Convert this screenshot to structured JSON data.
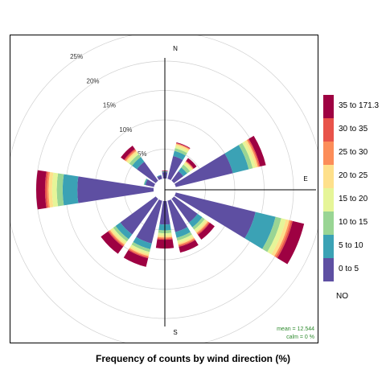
{
  "chart_data": {
    "type": "windrose",
    "title": "Frequency of counts by wind direction (%)",
    "directions": [
      "N",
      "NNE",
      "NE",
      "ENE",
      "E",
      "ESE",
      "SE",
      "SSE",
      "S",
      "SSW",
      "SW",
      "WSW",
      "W",
      "WNW",
      "NW",
      "NNW"
    ],
    "compass_labels": [
      "N",
      "E",
      "S"
    ],
    "radial_ticks": [
      5,
      10,
      15,
      20,
      25
    ],
    "radial_tick_labels": [
      "5%",
      "10%",
      "15%",
      "20%",
      "25%"
    ],
    "rmax_percent": 25,
    "legend_title": "NO",
    "bins": [
      {
        "label": "0 to 5",
        "color": "#5e4fa2"
      },
      {
        "label": "5 to 10",
        "color": "#3ba2b5"
      },
      {
        "label": "10 to 15",
        "color": "#99d594"
      },
      {
        "label": "15 to 20",
        "color": "#e6f598"
      },
      {
        "label": "20 to 25",
        "color": "#fee08b"
      },
      {
        "label": "25 to 30",
        "color": "#fc8d59"
      },
      {
        "label": "30 to 35",
        "color": "#e8534a"
      },
      {
        "label": "35 to 171.3",
        "color": "#9e0142"
      }
    ],
    "series": [
      {
        "direction": "N",
        "values": [
          1.1,
          0.1,
          0.05,
          0.0,
          0.0,
          0.0,
          0.0,
          0.1
        ]
      },
      {
        "direction": "NNE",
        "values": [
          4.0,
          0.9,
          0.5,
          0.4,
          0.3,
          0.1,
          0.1,
          0.1
        ]
      },
      {
        "direction": "NE",
        "values": [
          2.0,
          0.8,
          0.6,
          0.4,
          0.2,
          0.1,
          0.1,
          0.6
        ]
      },
      {
        "direction": "ENE",
        "values": [
          10.0,
          2.8,
          0.7,
          0.5,
          0.4,
          0.2,
          0.2,
          1.0
        ]
      },
      {
        "direction": "E",
        "values": [
          0.0,
          0.0,
          0.0,
          0.0,
          0.0,
          0.0,
          0.0,
          0.0
        ]
      },
      {
        "direction": "ESE",
        "values": [
          14.0,
          3.5,
          1.0,
          0.8,
          0.6,
          0.3,
          0.3,
          2.0
        ]
      },
      {
        "direction": "SE",
        "values": [
          5.0,
          1.0,
          0.5,
          0.4,
          0.3,
          0.2,
          0.2,
          1.0
        ]
      },
      {
        "direction": "SSE",
        "values": [
          5.5,
          1.0,
          0.5,
          0.4,
          0.3,
          0.2,
          0.2,
          1.0
        ]
      },
      {
        "direction": "S",
        "values": [
          4.0,
          1.0,
          0.5,
          0.4,
          0.3,
          0.2,
          0.2,
          1.5
        ]
      },
      {
        "direction": "SSW",
        "values": [
          7.5,
          1.0,
          0.5,
          0.4,
          0.3,
          0.2,
          0.2,
          1.5
        ]
      },
      {
        "direction": "SW",
        "values": [
          7.5,
          1.0,
          0.5,
          0.4,
          0.3,
          0.2,
          0.2,
          1.5
        ]
      },
      {
        "direction": "WSW",
        "values": [
          0.0,
          0.0,
          0.0,
          0.0,
          0.0,
          0.0,
          0.0,
          0.0
        ]
      },
      {
        "direction": "W",
        "values": [
          13.0,
          2.5,
          1.0,
          0.8,
          0.6,
          0.3,
          0.3,
          1.5
        ]
      },
      {
        "direction": "WNW",
        "values": [
          1.5,
          0.2,
          0.1,
          0.0,
          0.0,
          0.0,
          0.0,
          0.0
        ]
      },
      {
        "direction": "NW",
        "values": [
          4.0,
          1.0,
          0.6,
          0.4,
          0.3,
          0.2,
          0.2,
          0.7
        ]
      },
      {
        "direction": "NNW",
        "values": [
          0.6,
          0.1,
          0.0,
          0.0,
          0.0,
          0.0,
          0.0,
          0.0
        ]
      }
    ],
    "stats": {
      "mean": "mean =  12.544",
      "calm": "calm =  0 %"
    }
  }
}
